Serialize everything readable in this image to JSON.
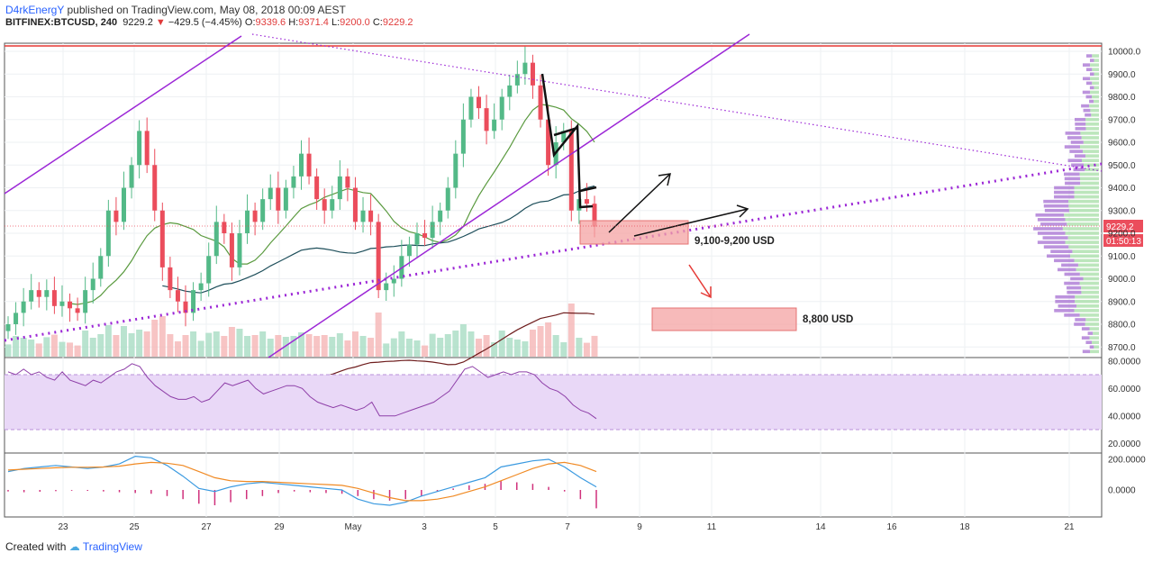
{
  "header": {
    "author": "D4rkEnergY",
    "published_text": "published on TradingView.com, May 08, 2018 00:09 AEST",
    "symbol": "BITFINEX:BTCUSD, 240",
    "last": "9229.2",
    "change": "−429.5 (−4.45%)",
    "open_label": "O:",
    "open": "9339.6",
    "high_label": "H:",
    "high": "9371.4",
    "low_label": "L:",
    "low": "9200.0",
    "close_label": "C:",
    "close": "9229.2"
  },
  "footer": {
    "created_with": "Created with",
    "brand": "TradingView"
  },
  "price_tags": {
    "last_price": "9229.2",
    "countdown": "01:50:13"
  },
  "annotations": {
    "zone1": "9,100-9,200 USD",
    "zone2": "8,800 USD"
  },
  "colors": {
    "up": "#53b987",
    "down": "#eb4d5c",
    "purple": "#9c27d6",
    "red_line": "#e53935",
    "rsi_fill": "#e9d8f7"
  },
  "chart_data": [
    {
      "type": "candlestick",
      "title": "BITFINEX:BTCUSD, 240",
      "ylim": [
        8650,
        10100
      ],
      "y_ticks": [
        10000,
        9900,
        9800,
        9700,
        9600,
        9500,
        9400,
        9300,
        9200,
        9100,
        9000,
        8900,
        8800,
        8700
      ],
      "y_tick_labels": [
        "10000.0",
        "9900.0",
        "9800.0",
        "9700.0",
        "9600.0",
        "9500.0",
        "9400.0",
        "9300.0",
        "9200.0",
        "9100.0",
        "9000.0",
        "8900.0",
        "8800.0",
        "8700.0"
      ],
      "x_tick_labels": [
        "23",
        "25",
        "27",
        "29",
        "May",
        "3",
        "5",
        "7",
        "9",
        "11",
        "14",
        "16",
        "18",
        "21"
      ],
      "grid": true,
      "series_close": [
        8800,
        8850,
        8900,
        8950,
        8920,
        8950,
        8880,
        8900,
        8870,
        8850,
        8950,
        9000,
        9100,
        9300,
        9250,
        9400,
        9500,
        9650,
        9500,
        9300,
        9050,
        8950,
        8900,
        8850,
        8950,
        8980,
        9100,
        9250,
        9200,
        9050,
        9200,
        9300,
        9250,
        9350,
        9400,
        9300,
        9400,
        9450,
        9550,
        9450,
        9350,
        9300,
        9350,
        9450,
        9400,
        9250,
        9300,
        9250,
        8950,
        8980,
        9000,
        9100,
        9150,
        9200,
        9180,
        9250,
        9300,
        9400,
        9550,
        9700,
        9800,
        9750,
        9650,
        9700,
        9800,
        9850,
        9900,
        9950,
        9850,
        9700,
        9500,
        9600,
        9650,
        9300,
        9350,
        9330,
        9229.2
      ],
      "indicators": [
        "MA (dark green)",
        "MA (dark teal)",
        "MA (dark red)",
        "Volume",
        "Volume Profile"
      ]
    },
    {
      "type": "line",
      "title": "",
      "ylim": [
        15,
        82
      ],
      "y_ticks": [
        80,
        60,
        40,
        20
      ],
      "y_tick_labels": [
        "80.0000",
        "60.0000",
        "40.0000",
        "20.0000"
      ],
      "band": [
        30,
        70
      ],
      "values": [
        72,
        70,
        74,
        70,
        72,
        68,
        66,
        72,
        66,
        64,
        62,
        66,
        64,
        68,
        72,
        74,
        78,
        76,
        68,
        62,
        58,
        54,
        52,
        52,
        54,
        50,
        52,
        58,
        64,
        62,
        64,
        66,
        60,
        56,
        58,
        60,
        62,
        62,
        60,
        54,
        50,
        48,
        46,
        48,
        46,
        44,
        46,
        50,
        40,
        40,
        40,
        42,
        44,
        46,
        48,
        50,
        54,
        58,
        66,
        74,
        76,
        72,
        68,
        70,
        72,
        70,
        72,
        72,
        70,
        64,
        60,
        58,
        54,
        48,
        44,
        42,
        38
      ]
    },
    {
      "type": "line",
      "title": "",
      "y_ticks": [
        200,
        0
      ],
      "y_tick_labels": [
        "200.0000",
        "0.0000"
      ],
      "series": [
        {
          "values": [
            120,
            140,
            150,
            160,
            150,
            140,
            150,
            170,
            220,
            210,
            160,
            90,
            10,
            -10,
            20,
            40,
            50,
            40,
            30,
            20,
            10,
            0,
            -60,
            -90,
            -100,
            -80,
            -40,
            -10,
            20,
            50,
            80,
            150,
            170,
            190,
            200,
            150,
            80,
            20
          ]
        },
        {
          "values": [
            130,
            135,
            140,
            145,
            148,
            148,
            150,
            155,
            170,
            180,
            175,
            160,
            120,
            80,
            60,
            55,
            55,
            50,
            45,
            40,
            35,
            30,
            10,
            -20,
            -50,
            -70,
            -70,
            -60,
            -40,
            -10,
            20,
            60,
            100,
            140,
            170,
            180,
            160,
            120
          ]
        }
      ],
      "histogram": [
        -10,
        -15,
        -12,
        -8,
        -5,
        -6,
        -10,
        -15,
        -20,
        -25,
        -40,
        -60,
        -90,
        -100,
        -80,
        -60,
        -40,
        -20,
        -10,
        -15,
        -20,
        -25,
        -40,
        -60,
        -70,
        -60,
        -40,
        -10,
        10,
        30,
        40,
        60,
        50,
        40,
        20,
        -10,
        -60,
        -120
      ]
    }
  ]
}
